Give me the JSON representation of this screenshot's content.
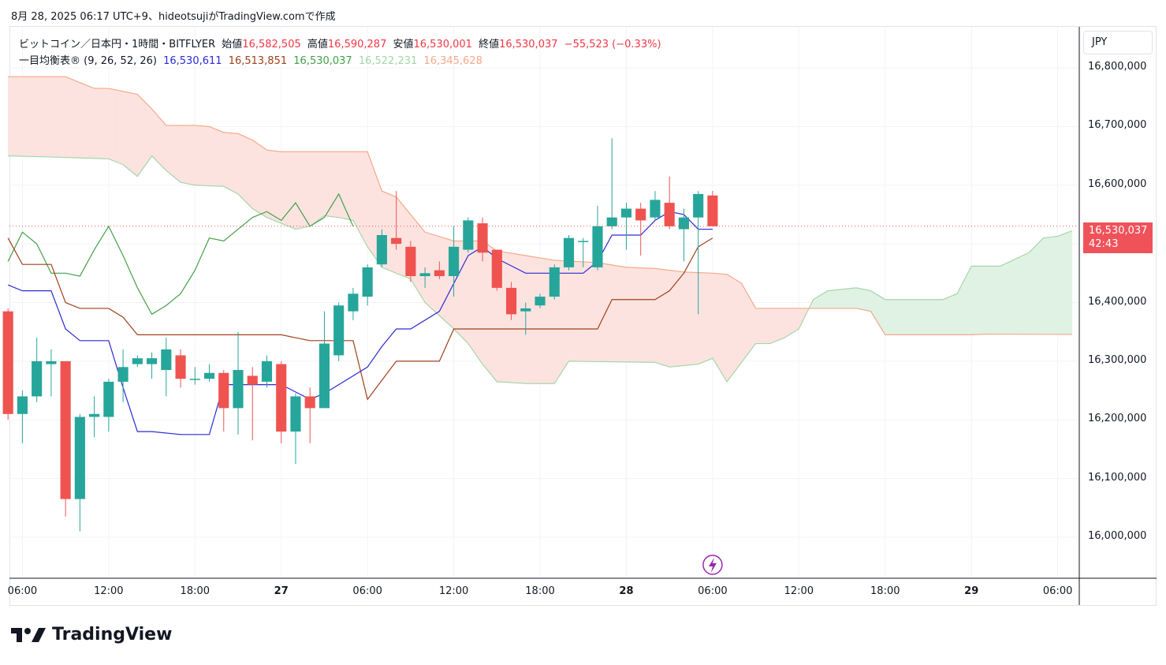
{
  "caption": "8月 28, 2025 06:17 UTC+9、hideotsujiがTradingView.comで作成",
  "legend": {
    "symbol": "ビットコイン／日本円・1時間・BITFLYER",
    "open_label": "始値",
    "open": "16,582,505",
    "high_label": "高値",
    "high": "16,590,287",
    "low_label": "安値",
    "low": "16,530,001",
    "close_label": "終値",
    "close": "16,530,037",
    "change": "−55,523 (−0.33%)",
    "indicator": "一目均衡表® (9, 26, 52, 26)",
    "tenkan": "16,530,611",
    "kijun": "16,513,851",
    "chikou": "16,530,037",
    "senkou_a": "16,522,231",
    "senkou_b": "16,345,628"
  },
  "currency": "JPY",
  "price_tag": {
    "price": "16,530,037",
    "countdown": "42:43"
  },
  "brand": "TradingView",
  "colors": {
    "up": "#26a69a",
    "down": "#ef5350",
    "tenkan": "#2a2ad6",
    "kijun": "#a0401a",
    "chikou": "#43a047",
    "senkou_a": "#a5d6a7",
    "senkou_b": "#f4a988",
    "cloud_bear": "#fde3e0",
    "cloud_bull": "#e0f2e4"
  },
  "chart_data": {
    "type": "candlestick",
    "y_ticks": [
      "16,000,000",
      "16,100,000",
      "16,200,000",
      "16,300,000",
      "16,400,000",
      "16,500,000",
      "16,600,000",
      "16,700,000",
      "16,800,000"
    ],
    "y_tick_values": [
      16000000,
      16100000,
      16200000,
      16300000,
      16400000,
      16500000,
      16600000,
      16700000,
      16800000
    ],
    "ylim": [
      15930000,
      16870000
    ],
    "x_ticks": [
      {
        "label": "06:00",
        "h": 0,
        "bold": false
      },
      {
        "label": "12:00",
        "h": 6,
        "bold": false
      },
      {
        "label": "18:00",
        "h": 12,
        "bold": false
      },
      {
        "label": "27",
        "h": 18,
        "bold": true
      },
      {
        "label": "06:00",
        "h": 24,
        "bold": false
      },
      {
        "label": "12:00",
        "h": 30,
        "bold": false
      },
      {
        "label": "18:00",
        "h": 36,
        "bold": false
      },
      {
        "label": "28",
        "h": 42,
        "bold": true
      },
      {
        "label": "06:00",
        "h": 48,
        "bold": false
      },
      {
        "label": "12:00",
        "h": 54,
        "bold": false
      },
      {
        "label": "18:00",
        "h": 60,
        "bold": false
      },
      {
        "label": "29",
        "h": 66,
        "bold": true
      },
      {
        "label": "06:00",
        "h": 72,
        "bold": false
      }
    ],
    "x_range": [
      -0.9,
      73.5
    ],
    "candles": [
      {
        "h": -1,
        "o": 16385000,
        "c": 16210000,
        "hi": 16390000,
        "lo": 16200000
      },
      {
        "h": 0,
        "o": 16210000,
        "c": 16240000,
        "hi": 16250000,
        "lo": 16160000
      },
      {
        "h": 1,
        "o": 16240000,
        "c": 16300000,
        "hi": 16340000,
        "lo": 16230000
      },
      {
        "h": 2,
        "o": 16295000,
        "c": 16300000,
        "hi": 16320000,
        "lo": 16240000
      },
      {
        "h": 3,
        "o": 16300000,
        "c": 16065000,
        "hi": 16300000,
        "lo": 16035000
      },
      {
        "h": 4,
        "o": 16065000,
        "c": 16205000,
        "hi": 16210000,
        "lo": 16010000
      },
      {
        "h": 5,
        "o": 16205000,
        "c": 16210000,
        "hi": 16240000,
        "lo": 16170000
      },
      {
        "h": 6,
        "o": 16205000,
        "c": 16265000,
        "hi": 16270000,
        "lo": 16180000
      },
      {
        "h": 7,
        "o": 16265000,
        "c": 16290000,
        "hi": 16320000,
        "lo": 16230000
      },
      {
        "h": 8,
        "o": 16295000,
        "c": 16305000,
        "hi": 16310000,
        "lo": 16290000
      },
      {
        "h": 9,
        "o": 16295000,
        "c": 16305000,
        "hi": 16315000,
        "lo": 16270000
      },
      {
        "h": 10,
        "o": 16285000,
        "c": 16320000,
        "hi": 16340000,
        "lo": 16240000
      },
      {
        "h": 11,
        "o": 16310000,
        "c": 16270000,
        "hi": 16320000,
        "lo": 16255000
      },
      {
        "h": 12,
        "o": 16270000,
        "c": 16270000,
        "hi": 16290000,
        "lo": 16260000
      },
      {
        "h": 13,
        "o": 16270000,
        "c": 16280000,
        "hi": 16295000,
        "lo": 16265000
      },
      {
        "h": 14,
        "o": 16280000,
        "c": 16220000,
        "hi": 16285000,
        "lo": 16180000
      },
      {
        "h": 15,
        "o": 16220000,
        "c": 16285000,
        "hi": 16350000,
        "lo": 16175000
      },
      {
        "h": 16,
        "o": 16275000,
        "c": 16260000,
        "hi": 16290000,
        "lo": 16165000
      },
      {
        "h": 17,
        "o": 16265000,
        "c": 16300000,
        "hi": 16310000,
        "lo": 16255000
      },
      {
        "h": 18,
        "o": 16295000,
        "c": 16180000,
        "hi": 16300000,
        "lo": 16160000
      },
      {
        "h": 19,
        "o": 16180000,
        "c": 16240000,
        "hi": 16245000,
        "lo": 16125000
      },
      {
        "h": 20,
        "o": 16240000,
        "c": 16220000,
        "hi": 16255000,
        "lo": 16160000
      },
      {
        "h": 21,
        "o": 16220000,
        "c": 16330000,
        "hi": 16385000,
        "lo": 16220000
      },
      {
        "h": 22,
        "o": 16310000,
        "c": 16395000,
        "hi": 16400000,
        "lo": 16300000
      },
      {
        "h": 23,
        "o": 16385000,
        "c": 16415000,
        "hi": 16425000,
        "lo": 16370000
      },
      {
        "h": 24,
        "o": 16410000,
        "c": 16460000,
        "hi": 16465000,
        "lo": 16395000
      },
      {
        "h": 25,
        "o": 16465000,
        "c": 16515000,
        "hi": 16525000,
        "lo": 16460000
      },
      {
        "h": 26,
        "o": 16510000,
        "c": 16500000,
        "hi": 16590000,
        "lo": 16490000
      },
      {
        "h": 27,
        "o": 16495000,
        "c": 16445000,
        "hi": 16505000,
        "lo": 16435000
      },
      {
        "h": 28,
        "o": 16445000,
        "c": 16450000,
        "hi": 16460000,
        "lo": 16425000
      },
      {
        "h": 29,
        "o": 16455000,
        "c": 16445000,
        "hi": 16470000,
        "lo": 16440000
      },
      {
        "h": 30,
        "o": 16445000,
        "c": 16495000,
        "hi": 16530000,
        "lo": 16410000
      },
      {
        "h": 31,
        "o": 16490000,
        "c": 16540000,
        "hi": 16545000,
        "lo": 16485000
      },
      {
        "h": 32,
        "o": 16535000,
        "c": 16485000,
        "hi": 16545000,
        "lo": 16470000
      },
      {
        "h": 33,
        "o": 16490000,
        "c": 16425000,
        "hi": 16490000,
        "lo": 16420000
      },
      {
        "h": 34,
        "o": 16425000,
        "c": 16380000,
        "hi": 16435000,
        "lo": 16370000
      },
      {
        "h": 35,
        "o": 16385000,
        "c": 16390000,
        "hi": 16400000,
        "lo": 16345000
      },
      {
        "h": 36,
        "o": 16395000,
        "c": 16410000,
        "hi": 16415000,
        "lo": 16390000
      },
      {
        "h": 37,
        "o": 16410000,
        "c": 16460000,
        "hi": 16465000,
        "lo": 16405000
      },
      {
        "h": 38,
        "o": 16460000,
        "c": 16510000,
        "hi": 16515000,
        "lo": 16455000
      },
      {
        "h": 39,
        "o": 16505000,
        "c": 16505000,
        "hi": 16510000,
        "lo": 16460000
      },
      {
        "h": 40,
        "o": 16460000,
        "c": 16530000,
        "hi": 16565000,
        "lo": 16455000
      },
      {
        "h": 41,
        "o": 16530000,
        "c": 16545000,
        "hi": 16680000,
        "lo": 16525000
      },
      {
        "h": 42,
        "o": 16545000,
        "c": 16560000,
        "hi": 16570000,
        "lo": 16490000
      },
      {
        "h": 43,
        "o": 16560000,
        "c": 16540000,
        "hi": 16570000,
        "lo": 16480000
      },
      {
        "h": 44,
        "o": 16545000,
        "c": 16575000,
        "hi": 16590000,
        "lo": 16540000
      },
      {
        "h": 45,
        "o": 16570000,
        "c": 16530000,
        "hi": 16615000,
        "lo": 16525000
      },
      {
        "h": 46,
        "o": 16525000,
        "c": 16545000,
        "hi": 16560000,
        "lo": 16470000
      },
      {
        "h": 47,
        "o": 16545000,
        "c": 16585000,
        "hi": 16590000,
        "lo": 16380000
      },
      {
        "h": 48,
        "o": 16582505,
        "c": 16530037,
        "hi": 16590287,
        "lo": 16530001
      }
    ],
    "tenkan": [
      [
        -1,
        16430000
      ],
      [
        0,
        16420000
      ],
      [
        2,
        16420000
      ],
      [
        3,
        16355000
      ],
      [
        4,
        16335000
      ],
      [
        6,
        16335000
      ],
      [
        7,
        16255000
      ],
      [
        8,
        16180000
      ],
      [
        9,
        16180000
      ],
      [
        11,
        16175000
      ],
      [
        13,
        16175000
      ],
      [
        14,
        16260000
      ],
      [
        18,
        16260000
      ],
      [
        20,
        16235000
      ],
      [
        21,
        16245000
      ],
      [
        22,
        16260000
      ],
      [
        24,
        16290000
      ],
      [
        25,
        16325000
      ],
      [
        26,
        16355000
      ],
      [
        27,
        16355000
      ],
      [
        29,
        16385000
      ],
      [
        31,
        16480000
      ],
      [
        32,
        16495000
      ],
      [
        33,
        16475000
      ],
      [
        35,
        16450000
      ],
      [
        39,
        16450000
      ],
      [
        40,
        16470000
      ],
      [
        41,
        16515000
      ],
      [
        43,
        16515000
      ],
      [
        44,
        16540000
      ],
      [
        45,
        16555000
      ],
      [
        46,
        16550000
      ],
      [
        47,
        16525000
      ],
      [
        48,
        16525000
      ]
    ],
    "kijun": [
      [
        -1,
        16510000
      ],
      [
        0,
        16465000
      ],
      [
        2,
        16465000
      ],
      [
        3,
        16400000
      ],
      [
        4,
        16390000
      ],
      [
        6,
        16390000
      ],
      [
        7,
        16375000
      ],
      [
        8,
        16345000
      ],
      [
        17,
        16345000
      ],
      [
        18,
        16345000
      ],
      [
        20,
        16335000
      ],
      [
        21,
        16335000
      ],
      [
        23,
        16335000
      ],
      [
        24,
        16235000
      ],
      [
        26,
        16300000
      ],
      [
        29,
        16300000
      ],
      [
        30,
        16355000
      ],
      [
        40,
        16355000
      ],
      [
        41,
        16405000
      ],
      [
        44,
        16405000
      ],
      [
        45,
        16420000
      ],
      [
        46,
        16450000
      ],
      [
        47,
        16495000
      ],
      [
        48,
        16510000
      ]
    ],
    "chikou": [
      [
        -1,
        16470000
      ],
      [
        0,
        16520000
      ],
      [
        1,
        16500000
      ],
      [
        2,
        16450000
      ],
      [
        3,
        16450000
      ],
      [
        4,
        16445000
      ],
      [
        5,
        16490000
      ],
      [
        6,
        16530000
      ],
      [
        7,
        16480000
      ],
      [
        8,
        16425000
      ],
      [
        9,
        16380000
      ],
      [
        10,
        16395000
      ],
      [
        11,
        16415000
      ],
      [
        12,
        16455000
      ],
      [
        13,
        16510000
      ],
      [
        14,
        16505000
      ],
      [
        15,
        16525000
      ],
      [
        16,
        16545000
      ],
      [
        17,
        16555000
      ],
      [
        18,
        16540000
      ],
      [
        19,
        16570000
      ],
      [
        20,
        16530000
      ],
      [
        21,
        16545000
      ],
      [
        22,
        16585000
      ],
      [
        23,
        16530000
      ]
    ],
    "senkou_a": [
      [
        -1,
        16650000
      ],
      [
        2,
        16648000
      ],
      [
        6,
        16645000
      ],
      [
        7,
        16635000
      ],
      [
        8,
        16615000
      ],
      [
        9,
        16650000
      ],
      [
        10,
        16625000
      ],
      [
        11,
        16605000
      ],
      [
        12,
        16600000
      ],
      [
        14,
        16598000
      ],
      [
        15,
        16585000
      ],
      [
        16,
        16560000
      ],
      [
        17,
        16545000
      ],
      [
        18,
        16535000
      ],
      [
        19,
        16525000
      ],
      [
        20,
        16530000
      ],
      [
        21,
        16548000
      ],
      [
        22,
        16545000
      ],
      [
        23,
        16540000
      ],
      [
        24,
        16495000
      ],
      [
        25,
        16460000
      ],
      [
        26,
        16450000
      ],
      [
        27,
        16440000
      ],
      [
        28,
        16400000
      ],
      [
        30,
        16355000
      ],
      [
        31,
        16330000
      ],
      [
        32,
        16295000
      ],
      [
        33,
        16265000
      ],
      [
        35,
        16262000
      ],
      [
        37,
        16262000
      ],
      [
        38,
        16300000
      ],
      [
        44,
        16298000
      ],
      [
        45,
        16290000
      ],
      [
        47,
        16295000
      ],
      [
        48,
        16305000
      ],
      [
        49,
        16265000
      ],
      [
        51,
        16330000
      ],
      [
        52,
        16330000
      ],
      [
        53,
        16340000
      ],
      [
        54,
        16355000
      ],
      [
        55,
        16405000
      ],
      [
        56,
        16420000
      ],
      [
        58,
        16425000
      ],
      [
        59,
        16420000
      ],
      [
        60,
        16405000
      ],
      [
        64,
        16405000
      ],
      [
        65,
        16415000
      ],
      [
        66,
        16462000
      ],
      [
        68,
        16462000
      ],
      [
        70,
        16485000
      ],
      [
        71,
        16510000
      ],
      [
        72,
        16513000
      ],
      [
        73,
        16522231
      ]
    ],
    "senkou_b": [
      [
        -1,
        16785000
      ],
      [
        3,
        16785000
      ],
      [
        4,
        16775000
      ],
      [
        5,
        16765000
      ],
      [
        6,
        16765000
      ],
      [
        7,
        16760000
      ],
      [
        8,
        16755000
      ],
      [
        9,
        16730000
      ],
      [
        10,
        16702000
      ],
      [
        12,
        16702000
      ],
      [
        13,
        16700000
      ],
      [
        14,
        16690000
      ],
      [
        15,
        16688000
      ],
      [
        16,
        16677000
      ],
      [
        17,
        16660000
      ],
      [
        18,
        16657000
      ],
      [
        24,
        16657000
      ],
      [
        25,
        16590000
      ],
      [
        26,
        16580000
      ],
      [
        27,
        16550000
      ],
      [
        28,
        16520000
      ],
      [
        30,
        16505000
      ],
      [
        32,
        16505000
      ],
      [
        33,
        16488000
      ],
      [
        35,
        16480000
      ],
      [
        37,
        16472000
      ],
      [
        40,
        16468000
      ],
      [
        42,
        16460000
      ],
      [
        44,
        16458000
      ],
      [
        46,
        16452000
      ],
      [
        48,
        16450000
      ],
      [
        49,
        16448000
      ],
      [
        50,
        16433000
      ],
      [
        51,
        16390000
      ],
      [
        58,
        16390000
      ],
      [
        59,
        16385000
      ],
      [
        60,
        16345000
      ],
      [
        66,
        16345000
      ],
      [
        67,
        16346000
      ],
      [
        73,
        16345628
      ]
    ],
    "last_price": 16530037
  }
}
